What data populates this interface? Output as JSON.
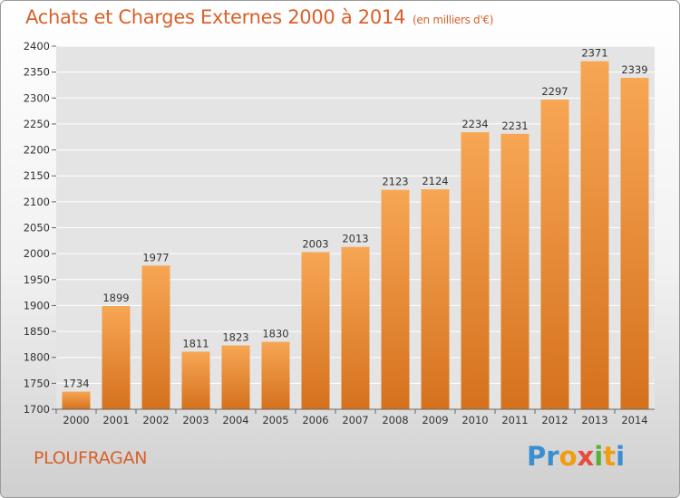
{
  "header": {
    "title": "Achats et Charges Externes 2000 à 2014",
    "unit": "(en milliers d'€)"
  },
  "footer": {
    "commune": "PLOUFRAGAN",
    "logo": "Proxiti",
    "logo_colors": [
      "#3a8fd1",
      "#3a8fd1",
      "#f39c12",
      "#e74c3c",
      "#5ab031",
      "#f39c12",
      "#3a8fd1"
    ]
  },
  "chart_data": {
    "type": "bar",
    "categories": [
      "2000",
      "2001",
      "2002",
      "2003",
      "2004",
      "2005",
      "2006",
      "2007",
      "2008",
      "2009",
      "2010",
      "2011",
      "2012",
      "2013",
      "2014"
    ],
    "values": [
      1734,
      1899,
      1977,
      1811,
      1823,
      1830,
      2003,
      2013,
      2123,
      2124,
      2234,
      2231,
      2297,
      2371,
      2339
    ],
    "yticks": [
      1700,
      1750,
      1800,
      1850,
      1900,
      1950,
      2000,
      2050,
      2100,
      2150,
      2200,
      2250,
      2300,
      2350,
      2400
    ],
    "ylim": [
      1700,
      2400
    ],
    "grid": true,
    "colors": {
      "bar_light": "#f5a24e",
      "bar_dark": "#d7731f",
      "grid": "#ffffff",
      "text": "#333333"
    }
  }
}
